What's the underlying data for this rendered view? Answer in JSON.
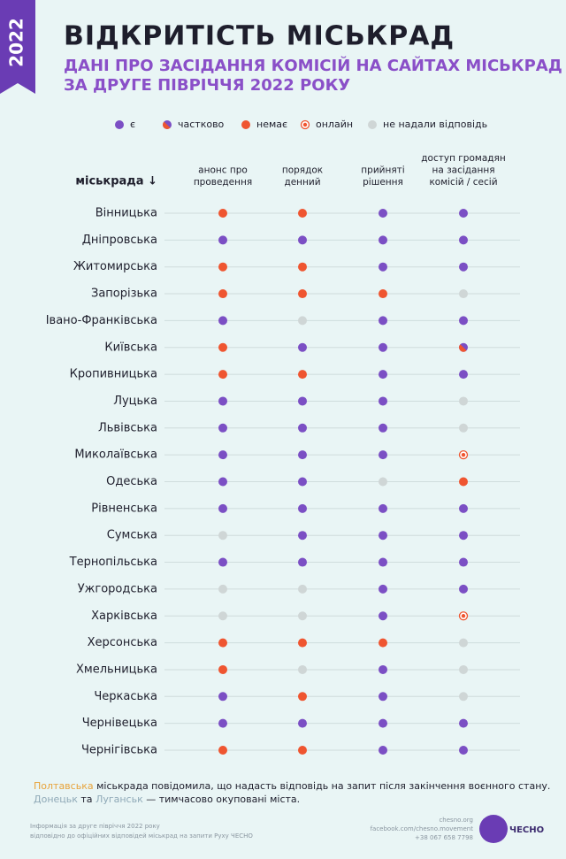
{
  "side_label": "2022",
  "header": {
    "title": "ВІДКРИТІСТЬ МІСЬКРАД",
    "subtitle_lines": [
      "ДАНІ ПРО ЗАСІДАННЯ КОМІСІЙ НА САЙТАХ МІСЬКРАД",
      "ЗА ДРУГЕ ПІВРІЧЧЯ 2022 РОКУ"
    ]
  },
  "legend": [
    "є",
    "частково",
    "немає",
    "онлайн",
    "не надали відповідь"
  ],
  "table": {
    "row_header": "міськрада ↓",
    "columns": [
      [
        "анонс про",
        "проведення"
      ],
      [
        "порядок",
        "денний"
      ],
      [
        "прийняті",
        "рішення"
      ],
      [
        "доступ громадян",
        "на засідання",
        "комісій / сесій"
      ]
    ],
    "rows": [
      {
        "city": "Вінницька",
        "cells": [
          "немає",
          "немає",
          "є",
          "є"
        ]
      },
      {
        "city": "Дніпровська",
        "cells": [
          "є",
          "є",
          "є",
          "є"
        ]
      },
      {
        "city": "Житомирська",
        "cells": [
          "немає",
          "немає",
          "є",
          "є"
        ]
      },
      {
        "city": "Запорізька",
        "cells": [
          "немає",
          "немає",
          "немає",
          "не надали відповідь"
        ]
      },
      {
        "city": "Івано-Франківська",
        "cells": [
          "є",
          "не надали відповідь",
          "є",
          "є"
        ]
      },
      {
        "city": "Київська",
        "cells": [
          "немає",
          "є",
          "є",
          "частково"
        ]
      },
      {
        "city": "Кропивницька",
        "cells": [
          "немає",
          "немає",
          "є",
          "є"
        ]
      },
      {
        "city": "Луцька",
        "cells": [
          "є",
          "є",
          "є",
          "не надали відповідь"
        ]
      },
      {
        "city": "Львівська",
        "cells": [
          "є",
          "є",
          "є",
          "не надали відповідь"
        ]
      },
      {
        "city": "Миколаївська",
        "cells": [
          "є",
          "є",
          "є",
          "онлайн"
        ]
      },
      {
        "city": "Одеська",
        "cells": [
          "є",
          "є",
          "не надали відповідь",
          "немає"
        ]
      },
      {
        "city": "Рівненська",
        "cells": [
          "є",
          "є",
          "є",
          "є"
        ]
      },
      {
        "city": "Сумська",
        "cells": [
          "не надали відповідь",
          "є",
          "є",
          "є"
        ]
      },
      {
        "city": "Тернопільська",
        "cells": [
          "є",
          "є",
          "є",
          "є"
        ]
      },
      {
        "city": "Ужгородська",
        "cells": [
          "не надали відповідь",
          "не надали відповідь",
          "є",
          "є"
        ]
      },
      {
        "city": "Харківська",
        "cells": [
          "не надали відповідь",
          "не надали відповідь",
          "є",
          "онлайн"
        ]
      },
      {
        "city": "Херсонська",
        "cells": [
          "немає",
          "немає",
          "немає",
          "не надали відповідь"
        ]
      },
      {
        "city": "Хмельницька",
        "cells": [
          "немає",
          "не надали відповідь",
          "є",
          "не надали відповідь"
        ]
      },
      {
        "city": "Черкаська",
        "cells": [
          "є",
          "немає",
          "є",
          "не надали відповідь"
        ]
      },
      {
        "city": "Чернівецька",
        "cells": [
          "є",
          "є",
          "є",
          "є"
        ]
      },
      {
        "city": "Чернігівська",
        "cells": [
          "немає",
          "немає",
          "є",
          "є"
        ]
      }
    ]
  },
  "notes": {
    "line1": {
      "city": "Полтавська",
      "text": " міськрада повідомила, що надасть відповідь на запит після закінчення воєнного стану."
    },
    "line2": {
      "city1": "Донецьк",
      "and": " та ",
      "city2": "Луганськ",
      "text": " — тимчасово окуповані міста."
    }
  },
  "footer": {
    "info": [
      "Інформація за друге півріччя 2022 року",
      "відповідно до офіційних відповідей міськрад на запити Руху ЧЕСНО"
    ],
    "contacts": [
      "chesno.org",
      "facebook.com/chesno.movement",
      "+38 067 658 7798"
    ],
    "logo": "ЧЕСНО"
  }
}
